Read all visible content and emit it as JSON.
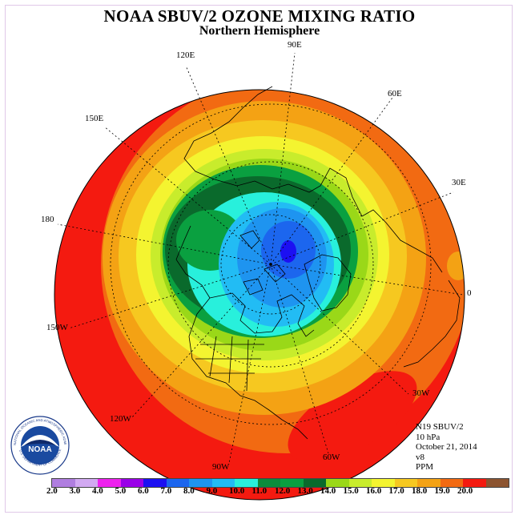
{
  "title": "NOAA SBUV/2 OZONE MIXING RATIO",
  "subtitle": "Northern Hemisphere",
  "longitude_labels": {
    "e90": "90E",
    "e120": "120E",
    "e60": "60E",
    "e150": "150E",
    "e30": "30E",
    "d180": "180",
    "d0": "0",
    "w150": "150W",
    "w30": "30W",
    "w120": "120W",
    "w60": "60W",
    "w90": "90W"
  },
  "info": {
    "satellite": "N19 SBUV/2",
    "level": "10 hPa",
    "date": "October 21, 2014",
    "version": "v8",
    "units": "PPM"
  },
  "logo": {
    "text": "NOAA",
    "ring_text": "NATIONAL OCEANIC AND ATMOSPHERIC ADMINISTRATION",
    "bottom_text": "U.S. DEPARTMENT OF COMMERCE"
  },
  "colorbar": {
    "ticks": [
      "2.0",
      "3.0",
      "4.0",
      "5.0",
      "6.0",
      "7.0",
      "8.0",
      "9.0",
      "10.0",
      "11.0",
      "12.0",
      "13.0",
      "14.0",
      "15.0",
      "16.0",
      "17.0",
      "18.0",
      "19.0",
      "20.0"
    ],
    "colors": [
      "#b07ee0",
      "#d2a9f2",
      "#ee22ee",
      "#9a00e8",
      "#1c10f2",
      "#1c66ee",
      "#1e94f0",
      "#22bcf4",
      "#28f0dc",
      "#0c8c3c",
      "#0aa040",
      "#0a6a2c",
      "#9ad818",
      "#c8ec2c",
      "#f4f430",
      "#f6c820",
      "#f4a214",
      "#f26a12",
      "#f41a10",
      "#8c5430"
    ]
  },
  "map": {
    "projection": "north-polar-stereographic",
    "ozone_range_ppm": [
      5.0,
      19.0
    ],
    "band_colors": {
      "c18": "#f41a10",
      "c17": "#f26a12",
      "c16": "#f4a214",
      "c15": "#f6c820",
      "c14": "#f4f430",
      "c13": "#c8ec2c",
      "c12": "#9ad818",
      "c11": "#0aa040",
      "c10": "#0a6a2c",
      "c9": "#28f0dc",
      "c8": "#22bcf4",
      "c7": "#1e94f0",
      "c6": "#1c66ee",
      "c5": "#1c10f2"
    }
  }
}
